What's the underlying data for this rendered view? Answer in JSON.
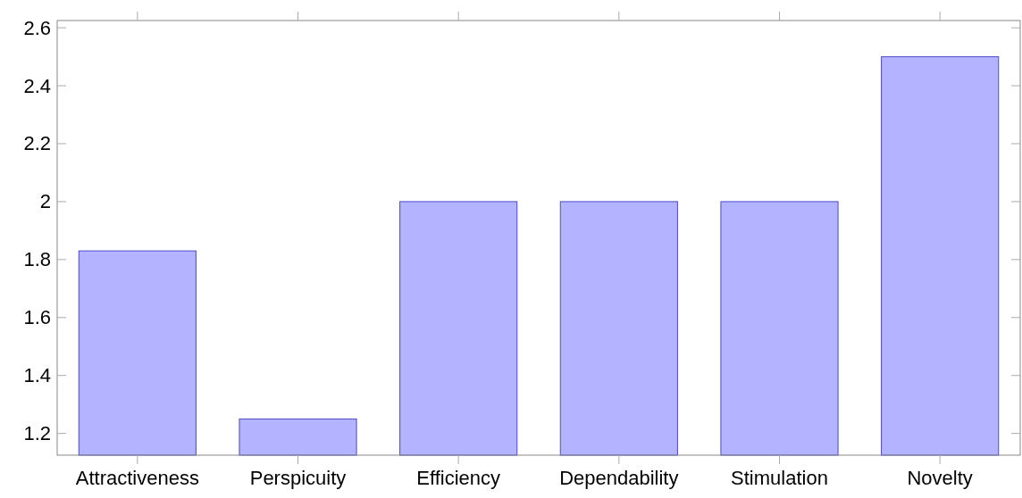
{
  "chart_data": {
    "type": "bar",
    "categories": [
      "Attractiveness",
      "Perspicuity",
      "Efficiency",
      "Dependability",
      "Stimulation",
      "Novelty"
    ],
    "values": [
      1.83,
      1.25,
      2,
      2,
      2,
      2.5
    ],
    "color": "#b3b3ff",
    "ylim": [
      1.125,
      2.625
    ],
    "yticks": [
      1.2,
      1.4,
      1.6,
      1.8,
      2,
      2.2,
      2.4,
      2.6
    ],
    "grid": false
  }
}
